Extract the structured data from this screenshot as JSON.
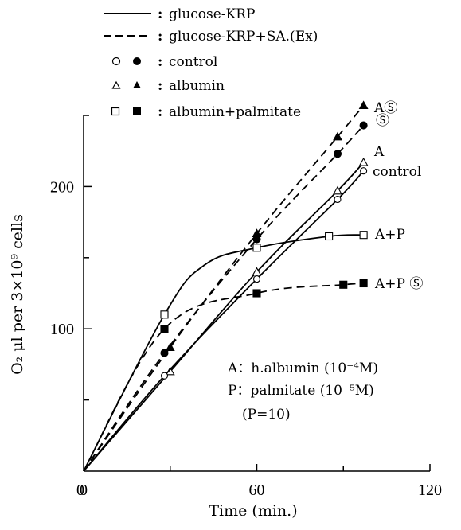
{
  "chart_data": {
    "type": "line",
    "xlabel": "Time (min.)",
    "ylabel": "O₂ μl per 3×10⁹ cells",
    "x_ticks": [
      0,
      60,
      120
    ],
    "y_ticks": [
      100,
      200
    ],
    "xlim": [
      0,
      120
    ],
    "ylim": [
      0,
      250
    ],
    "grid": false,
    "legend": {
      "placement": "top-left",
      "line_styles": [
        {
          "style": "solid",
          "label": "glucose-KRP"
        },
        {
          "style": "dashed",
          "label": "glucose-KRP+SA.(Ex)"
        }
      ],
      "markers": [
        {
          "open": "circle",
          "filled": "circle",
          "label": "control"
        },
        {
          "open": "triangle",
          "filled": "triangle",
          "label": "albumin"
        },
        {
          "open": "square",
          "filled": "square",
          "label": "albumin+palmitate"
        }
      ]
    },
    "series": [
      {
        "label": "AⓈ",
        "style": "dashed",
        "marker": "triangle",
        "filled": true,
        "x": [
          0,
          30,
          60,
          88,
          97
        ],
        "y": [
          0,
          87,
          167,
          235,
          257
        ]
      },
      {
        "label": "Ⓢ",
        "style": "dashed",
        "marker": "circle",
        "filled": true,
        "x": [
          0,
          28,
          60,
          88,
          97
        ],
        "y": [
          0,
          83,
          163,
          223,
          243
        ]
      },
      {
        "label": "A",
        "style": "solid",
        "marker": "triangle",
        "filled": false,
        "x": [
          0,
          30,
          60,
          88,
          97
        ],
        "y": [
          0,
          70,
          140,
          197,
          217
        ]
      },
      {
        "label": "control",
        "style": "solid",
        "marker": "circle",
        "filled": false,
        "x": [
          0,
          28,
          60,
          88,
          97
        ],
        "y": [
          0,
          67,
          135,
          191,
          211
        ]
      },
      {
        "label": "A+P",
        "style": "solid",
        "marker": "square",
        "filled": false,
        "x": [
          0,
          28,
          42,
          60,
          85,
          97
        ],
        "y": [
          0,
          110,
          145,
          157,
          165,
          166
        ]
      },
      {
        "label": "A+P Ⓢ",
        "style": "dashed",
        "marker": "square",
        "filled": true,
        "x": [
          0,
          28,
          60,
          90,
          97
        ],
        "y": [
          0,
          100,
          125,
          131,
          132
        ]
      }
    ],
    "annotations": [
      "A：h.albumin (10⁻⁴M)",
      "P：palmitate (10⁻⁵M)",
      "(P=10)"
    ]
  }
}
